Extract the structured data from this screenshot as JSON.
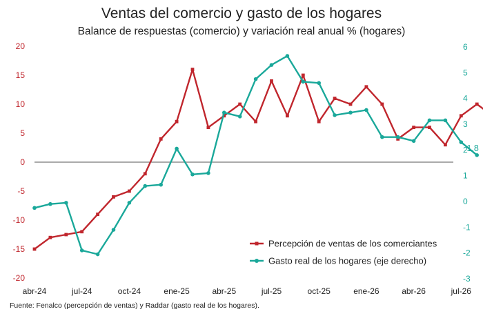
{
  "chart_data": {
    "type": "line",
    "title": "Ventas del comercio y gasto de los hogares",
    "subtitle": "Balance de respuestas (comercio) y variación real anual % (hogares)",
    "source": "Fuente: Fenalco (percepción de ventas) y Raddar (gasto real de los hogares).",
    "x_tick_labels": [
      "abr-24",
      "jul-24",
      "oct-24",
      "ene-25",
      "abr-25",
      "jul-25",
      "oct-25",
      "ene-26",
      "abr-26",
      "jul-26"
    ],
    "y_left": {
      "ylim": [
        -20,
        20
      ],
      "ticks": [
        -20,
        -15,
        -10,
        -5,
        0,
        5,
        10,
        15,
        20
      ],
      "color": "#c0262d"
    },
    "y_right": {
      "ylim": [
        -3,
        6
      ],
      "ticks": [
        -3,
        -2,
        -1,
        0,
        1,
        2,
        3,
        4,
        5,
        6
      ],
      "color": "#1aa89a"
    },
    "series": [
      {
        "name": "Percepción de ventas de los comerciantes",
        "axis": "left",
        "color": "#c0262d",
        "marker": "square",
        "values": [
          -15,
          -13,
          -12.5,
          -12,
          -9,
          -6,
          -5,
          -2,
          4,
          7,
          16,
          6,
          8,
          10,
          7,
          14,
          8,
          15,
          7,
          11,
          10,
          13,
          10,
          4,
          6,
          6,
          3,
          8,
          10,
          8
        ],
        "end_label": "8"
      },
      {
        "name": "Gasto real de los hogares (eje derecho)",
        "axis": "right",
        "color": "#1aa89a",
        "marker": "circle",
        "values": [
          -0.25,
          -0.1,
          -0.05,
          -1.9,
          -2.05,
          -1.1,
          -0.05,
          0.6,
          0.65,
          2.05,
          1.05,
          1.1,
          3.45,
          3.3,
          4.75,
          5.3,
          5.65,
          4.65,
          4.6,
          3.35,
          3.45,
          3.55,
          2.5,
          2.5,
          2.35,
          3.15,
          3.15,
          2.3,
          1.8
        ],
        "end_label": "1.8"
      }
    ],
    "legend_position": "lower-right"
  }
}
